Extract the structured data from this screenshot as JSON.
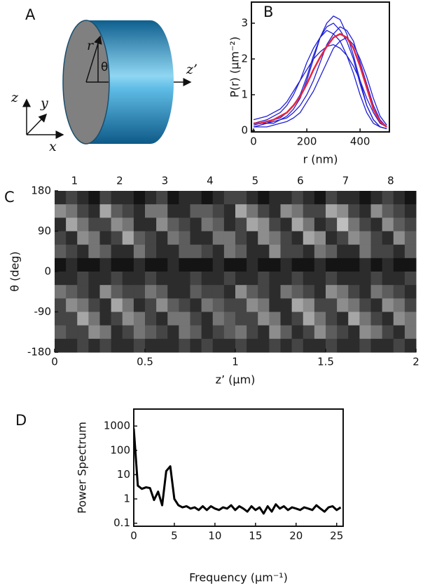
{
  "panel_a": {
    "panel": "A",
    "r": "r",
    "theta": "θ",
    "z_prime": "z’",
    "z": "z",
    "y": "y",
    "x": "x"
  },
  "chart_data": [
    {
      "type": "line",
      "panel": "B",
      "xlabel": "r (nm)",
      "ylabel": "P(r) (µm⁻²)",
      "x": [
        0,
        25,
        50,
        75,
        100,
        125,
        150,
        175,
        200,
        225,
        250,
        275,
        300,
        325,
        350,
        375,
        400,
        425,
        450,
        475,
        500
      ],
      "xlim": [
        -8,
        510
      ],
      "ylim": [
        -0.04,
        3.59
      ],
      "xticks": [
        0,
        200,
        400
      ],
      "yticks": [
        0,
        1,
        2,
        3
      ],
      "log_y": false,
      "series": [
        {
          "color": "#1f1fd6",
          "values": [
            0.1,
            0.15,
            0.2,
            0.25,
            0.3,
            0.4,
            0.6,
            0.9,
            1.4,
            2.0,
            2.6,
            3.0,
            3.2,
            3.1,
            2.7,
            2.1,
            1.4,
            0.7,
            0.3,
            0.1,
            0.05
          ]
        },
        {
          "color": "#1f1fd6",
          "values": [
            0.2,
            0.2,
            0.2,
            0.2,
            0.3,
            0.35,
            0.5,
            0.7,
            1.0,
            1.4,
            1.9,
            2.4,
            2.7,
            2.9,
            2.8,
            2.5,
            1.9,
            1.3,
            0.7,
            0.3,
            0.1
          ]
        },
        {
          "color": "#1f1fd6",
          "values": [
            0.3,
            0.35,
            0.4,
            0.5,
            0.6,
            0.8,
            1.1,
            1.4,
            1.7,
            2.0,
            2.2,
            2.35,
            2.4,
            2.3,
            2.1,
            1.8,
            1.4,
            0.9,
            0.5,
            0.2,
            0.1
          ]
        },
        {
          "color": "#1f1fd6",
          "values": [
            0.1,
            0.1,
            0.1,
            0.15,
            0.2,
            0.25,
            0.35,
            0.5,
            0.8,
            1.1,
            1.5,
            1.9,
            2.3,
            2.5,
            2.6,
            2.4,
            2.0,
            1.5,
            0.9,
            0.4,
            0.15
          ]
        },
        {
          "color": "#1f1fd6",
          "values": [
            0.2,
            0.25,
            0.3,
            0.4,
            0.5,
            0.7,
            1.0,
            1.4,
            1.9,
            2.3,
            2.6,
            2.8,
            2.7,
            2.5,
            2.1,
            1.6,
            1.0,
            0.5,
            0.2,
            0.1,
            0.05
          ]
        },
        {
          "color": "#1f1fd6",
          "values": [
            0.15,
            0.2,
            0.2,
            0.3,
            0.35,
            0.5,
            0.7,
            1.0,
            1.5,
            2.1,
            2.6,
            2.9,
            3.0,
            2.8,
            2.5,
            2.0,
            1.3,
            0.7,
            0.3,
            0.1,
            0.05
          ]
        },
        {
          "color": "#e8243c",
          "values": [
            0.2,
            0.2,
            0.25,
            0.3,
            0.4,
            0.5,
            0.7,
            0.95,
            1.3,
            1.7,
            2.05,
            2.35,
            2.6,
            2.7,
            2.6,
            2.3,
            1.8,
            1.2,
            0.6,
            0.25,
            0.1
          ]
        }
      ]
    },
    {
      "type": "heatmap",
      "panel": "C",
      "xlabel": "z’ (µm)",
      "ylabel": "θ (deg)",
      "xlim": [
        0,
        2
      ],
      "ylim": [
        -180,
        180
      ],
      "xticks": [
        0,
        0.5,
        1,
        1.5,
        2
      ],
      "yticks": [
        -180,
        -90,
        0,
        90,
        180
      ],
      "stripe_labels": {
        "x": [
          0.11,
          0.36,
          0.61,
          0.86,
          1.11,
          1.36,
          1.61,
          1.86
        ],
        "labels": [
          "1",
          "2",
          "3",
          "4",
          "5",
          "6",
          "7",
          "8"
        ],
        "color": "#1f1fd6"
      },
      "values": [
        [
          2,
          3,
          2,
          1,
          3,
          2,
          2,
          1,
          2,
          3,
          1,
          2,
          2,
          1,
          2,
          3,
          3,
          2,
          1,
          2,
          2,
          3,
          2,
          1,
          3,
          2,
          2,
          1,
          2,
          3,
          2,
          1
        ],
        [
          6,
          5,
          3,
          2,
          7,
          4,
          3,
          2,
          5,
          5,
          2,
          2,
          4,
          4,
          3,
          2,
          7,
          5,
          3,
          2,
          6,
          5,
          3,
          3,
          7,
          6,
          3,
          2,
          6,
          4,
          3,
          2
        ],
        [
          2,
          7,
          5,
          3,
          3,
          6,
          5,
          2,
          2,
          6,
          4,
          3,
          2,
          5,
          4,
          2,
          3,
          7,
          6,
          3,
          2,
          7,
          5,
          2,
          3,
          8,
          5,
          3,
          2,
          6,
          4,
          3
        ],
        [
          3,
          2,
          6,
          5,
          2,
          3,
          7,
          4,
          3,
          2,
          5,
          4,
          2,
          2,
          5,
          5,
          3,
          2,
          6,
          5,
          3,
          2,
          7,
          6,
          2,
          3,
          6,
          5,
          3,
          2,
          6,
          4
        ],
        [
          4,
          3,
          2,
          5,
          4,
          2,
          2,
          5,
          3,
          2,
          2,
          4,
          4,
          3,
          2,
          5,
          4,
          2,
          2,
          6,
          3,
          3,
          2,
          5,
          4,
          2,
          2,
          5,
          3,
          3,
          2,
          4
        ],
        [
          1,
          2,
          1,
          1,
          2,
          1,
          1,
          2,
          1,
          1,
          2,
          1,
          1,
          1,
          2,
          1,
          1,
          2,
          1,
          1,
          2,
          1,
          1,
          2,
          1,
          1,
          1,
          2,
          1,
          2,
          1,
          1
        ],
        [
          2,
          2,
          3,
          2,
          2,
          3,
          2,
          2,
          3,
          2,
          2,
          2,
          3,
          2,
          2,
          3,
          2,
          2,
          3,
          2,
          2,
          3,
          2,
          2,
          3,
          2,
          2,
          2,
          3,
          2,
          2,
          3
        ],
        [
          5,
          4,
          3,
          2,
          6,
          4,
          3,
          3,
          5,
          4,
          2,
          2,
          4,
          3,
          3,
          2,
          6,
          4,
          3,
          2,
          5,
          4,
          3,
          2,
          6,
          5,
          3,
          2,
          5,
          4,
          3,
          2
        ],
        [
          3,
          6,
          5,
          3,
          2,
          7,
          5,
          2,
          3,
          6,
          4,
          3,
          2,
          5,
          4,
          3,
          3,
          6,
          5,
          2,
          2,
          7,
          6,
          3,
          3,
          6,
          5,
          3,
          2,
          6,
          5,
          3
        ],
        [
          3,
          3,
          7,
          5,
          2,
          3,
          6,
          5,
          3,
          2,
          5,
          5,
          3,
          2,
          5,
          4,
          3,
          3,
          6,
          5,
          2,
          3,
          7,
          5,
          3,
          2,
          7,
          5,
          3,
          2,
          6,
          5
        ],
        [
          4,
          3,
          3,
          6,
          5,
          2,
          3,
          5,
          4,
          3,
          2,
          5,
          4,
          2,
          3,
          4,
          5,
          3,
          2,
          6,
          4,
          2,
          3,
          6,
          4,
          3,
          2,
          6,
          5,
          3,
          2,
          5
        ],
        [
          2,
          2,
          3,
          2,
          3,
          2,
          2,
          3,
          2,
          2,
          2,
          3,
          2,
          3,
          2,
          2,
          3,
          2,
          2,
          3,
          2,
          3,
          2,
          2,
          3,
          2,
          2,
          3,
          2,
          2,
          3,
          2
        ]
      ]
    },
    {
      "type": "line",
      "panel": "D",
      "xlabel": "Frequency (µm⁻¹)",
      "ylabel": "Power Spectrum",
      "x": [
        0,
        0.5,
        1,
        1.5,
        2,
        2.5,
        3,
        3.5,
        4,
        4.5,
        5,
        5.5,
        6,
        6.5,
        7,
        7.5,
        8,
        8.5,
        9,
        9.5,
        10,
        10.5,
        11,
        11.5,
        12,
        12.5,
        13,
        13.5,
        14,
        14.5,
        15,
        15.5,
        16,
        16.5,
        17,
        17.5,
        18,
        18.5,
        19,
        19.5,
        20,
        20.5,
        21,
        21.5,
        22,
        22.5,
        23,
        23.5,
        24,
        24.5,
        25,
        25.5
      ],
      "xlim": [
        0,
        25.8
      ],
      "ylim": [
        0.075,
        5000
      ],
      "xticks": [
        0,
        5,
        10,
        15,
        20,
        25
      ],
      "yticks": [
        0.1,
        1,
        10,
        100,
        1000
      ],
      "log_y": true,
      "series": [
        {
          "color": "#000000",
          "values": [
            800,
            3.5,
            2.6,
            3,
            2.8,
            0.9,
            2.0,
            0.55,
            14,
            22,
            1.0,
            0.55,
            0.45,
            0.5,
            0.4,
            0.45,
            0.35,
            0.5,
            0.35,
            0.5,
            0.4,
            0.35,
            0.45,
            0.4,
            0.55,
            0.35,
            0.5,
            0.4,
            0.3,
            0.5,
            0.35,
            0.45,
            0.25,
            0.5,
            0.3,
            0.6,
            0.4,
            0.5,
            0.35,
            0.45,
            0.4,
            0.35,
            0.45,
            0.4,
            0.35,
            0.55,
            0.4,
            0.3,
            0.45,
            0.5,
            0.35,
            0.45
          ]
        }
      ]
    }
  ]
}
